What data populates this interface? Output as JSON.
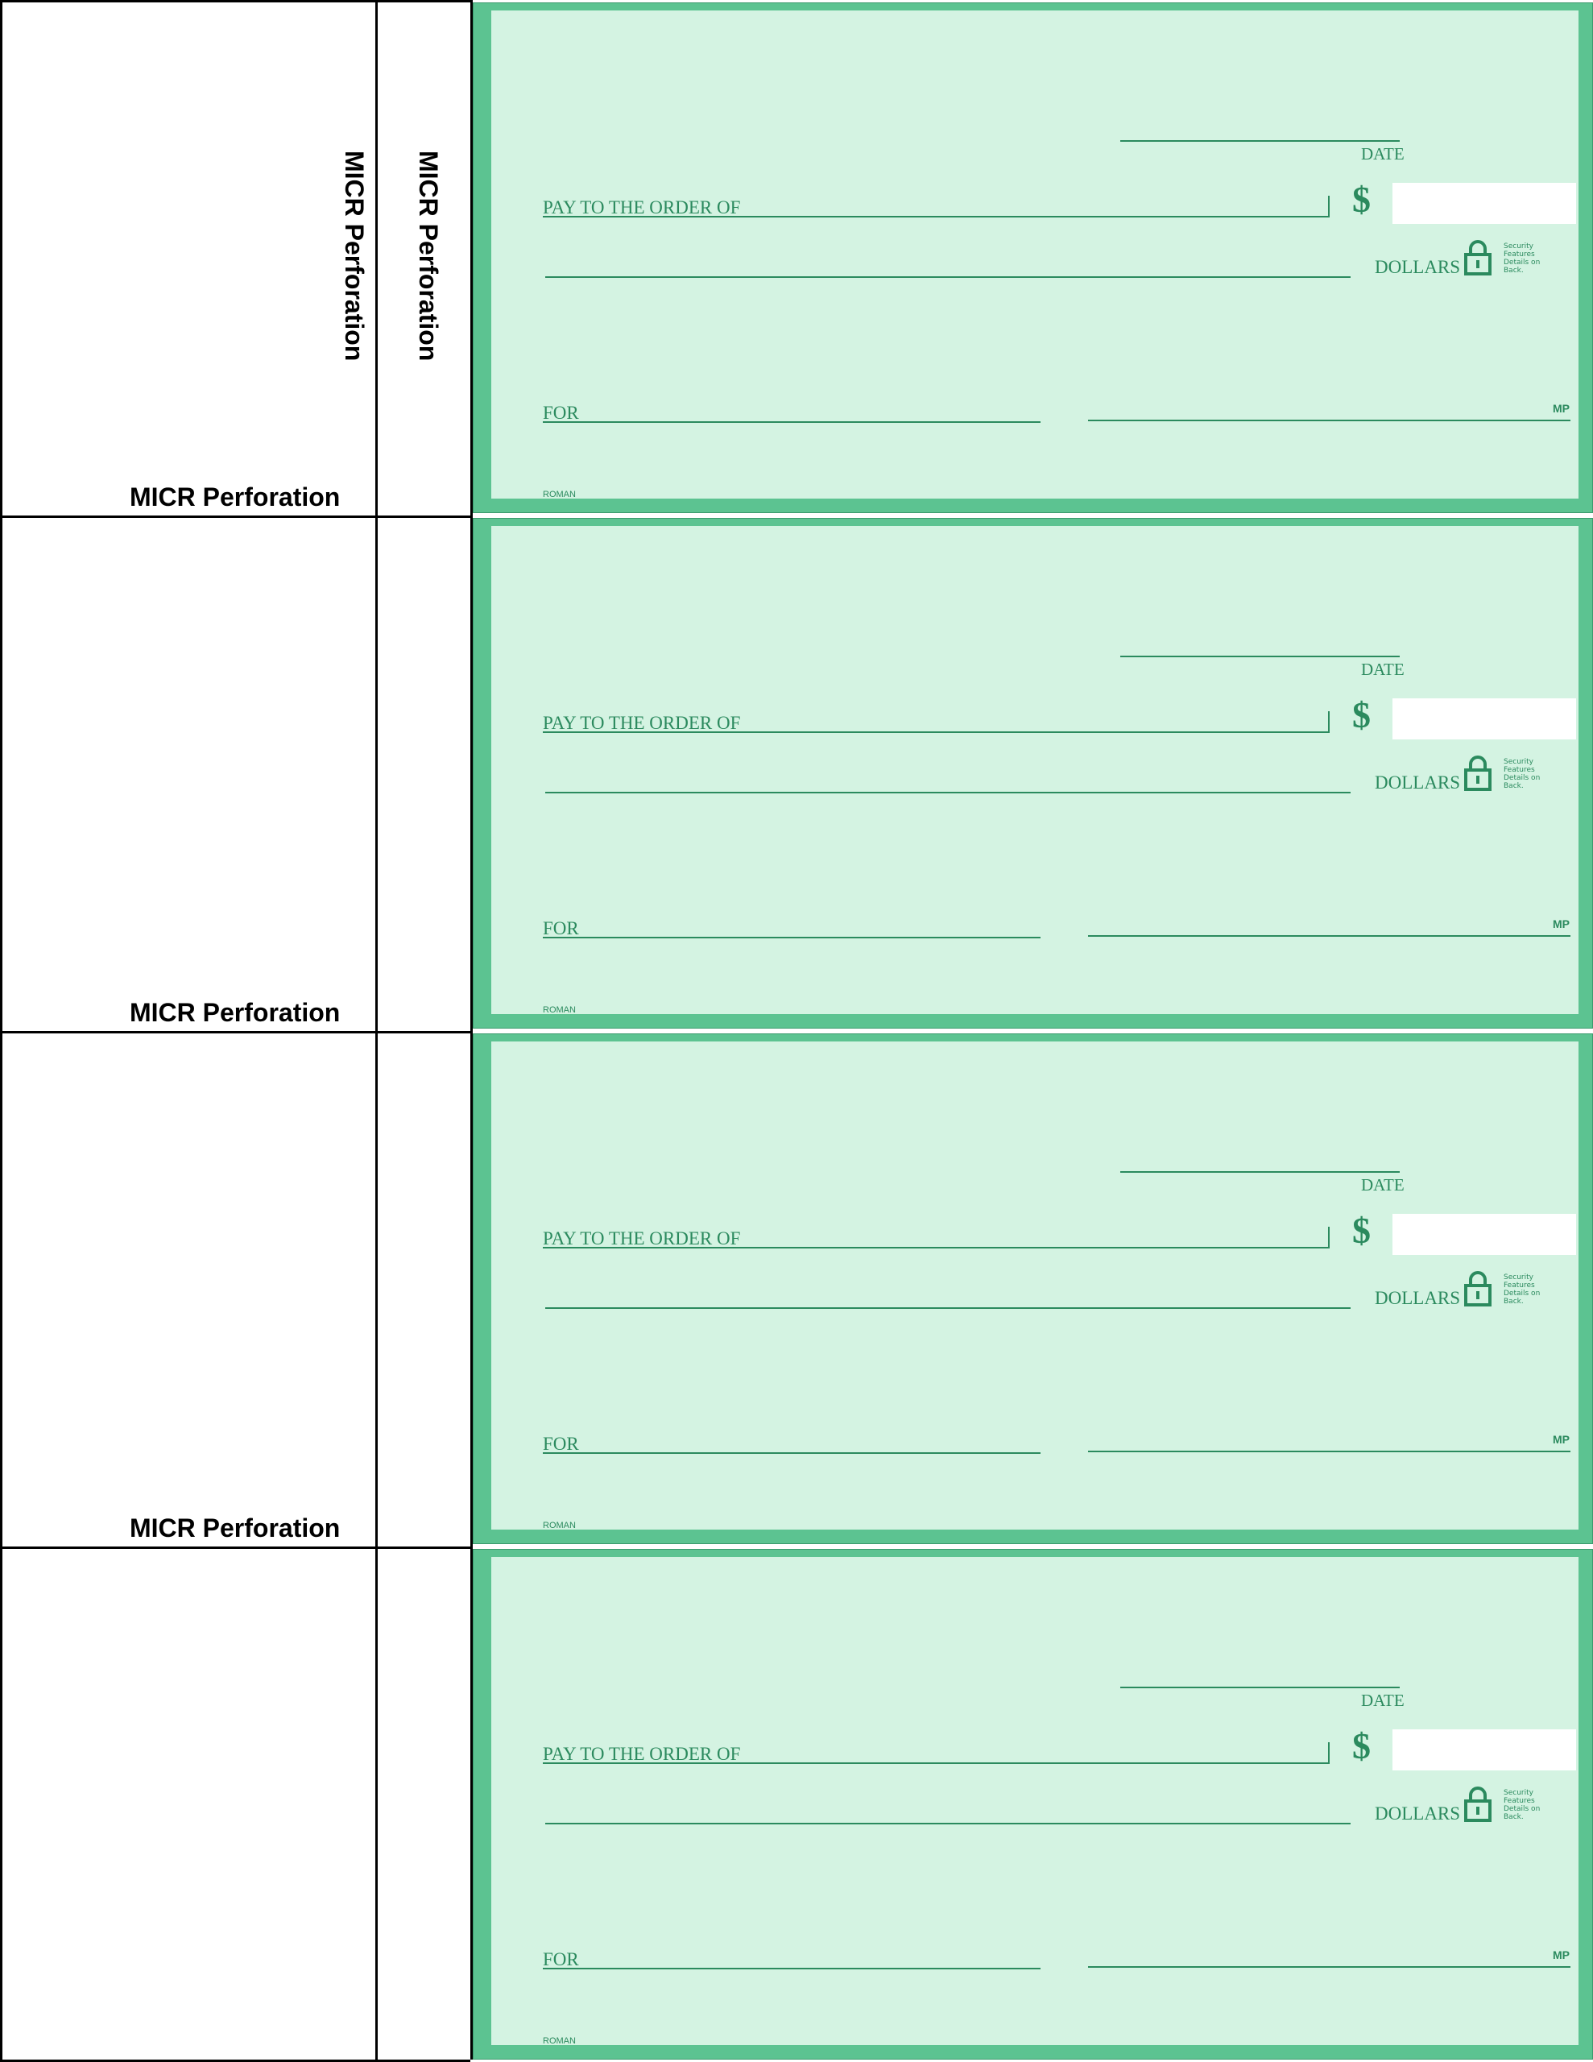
{
  "perforation_label": "MICR Perforation",
  "colors": {
    "check_border": "#5cc391",
    "check_background": "#d4f3e2",
    "check_ink": "#2b8a5e"
  },
  "checks": [
    {
      "date_label": "DATE",
      "pay_to_label": "PAY TO THE ORDER OF",
      "currency_symbol": "$",
      "dollars_label": "DOLLARS",
      "security_text": "Security Features Details on Back.",
      "for_label": "FOR",
      "mp_mark": "MP",
      "style_name": "ROMAN",
      "stub_label": "MICR Perforation",
      "side_labels": [
        "MICR Perforation",
        "MICR Perforation"
      ]
    },
    {
      "date_label": "DATE",
      "pay_to_label": "PAY TO THE ORDER OF",
      "currency_symbol": "$",
      "dollars_label": "DOLLARS",
      "security_text": "Security Features Details on Back.",
      "for_label": "FOR",
      "mp_mark": "MP",
      "style_name": "ROMAN",
      "stub_label": "MICR Perforation"
    },
    {
      "date_label": "DATE",
      "pay_to_label": "PAY TO THE ORDER OF",
      "currency_symbol": "$",
      "dollars_label": "DOLLARS",
      "security_text": "Security Features Details on Back.",
      "for_label": "FOR",
      "mp_mark": "MP",
      "style_name": "ROMAN",
      "stub_label": ""
    },
    {
      "date_label": "DATE",
      "pay_to_label": "PAY TO THE ORDER OF",
      "currency_symbol": "$",
      "dollars_label": "DOLLARS",
      "security_text": "Security Features Details on Back.",
      "for_label": "FOR",
      "mp_mark": "MP",
      "style_name": "ROMAN",
      "stub_label": ""
    }
  ],
  "extra_stub_labels": [
    "MICR Perforation"
  ]
}
